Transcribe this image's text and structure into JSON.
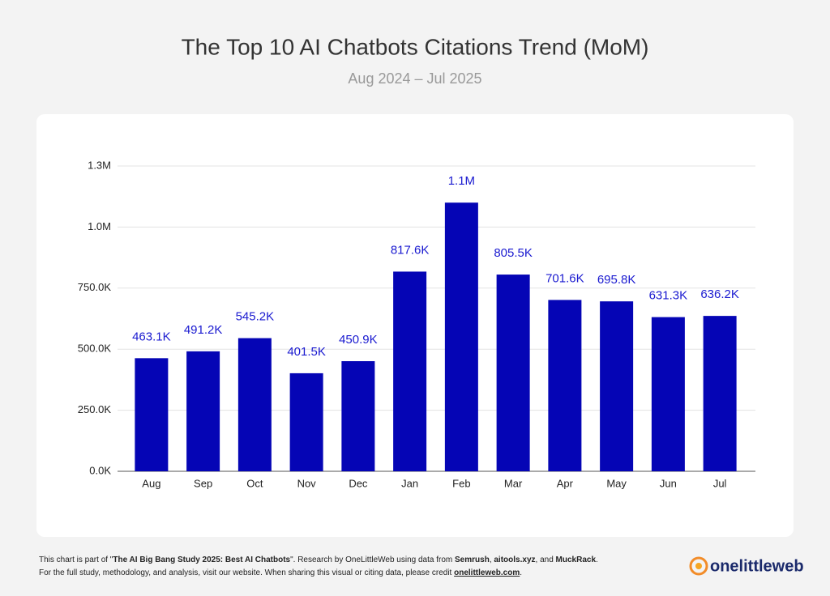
{
  "chart_data": {
    "type": "bar",
    "title": "The Top 10 AI Chatbots Citations Trend (MoM)",
    "subtitle": "Aug 2024 – Jul 2025",
    "categories": [
      "Aug",
      "Sep",
      "Oct",
      "Nov",
      "Dec",
      "Jan",
      "Feb",
      "Mar",
      "Apr",
      "May",
      "Jun",
      "Jul"
    ],
    "values": [
      463100,
      491200,
      545200,
      401500,
      450900,
      817600,
      1100000,
      805500,
      701600,
      695800,
      631300,
      636200
    ],
    "value_labels": [
      "463.1K",
      "491.2K",
      "545.2K",
      "401.5K",
      "450.9K",
      "817.6K",
      "1.1M",
      "805.5K",
      "701.6K",
      "695.8K",
      "631.3K",
      "636.2K"
    ],
    "color": "#0505b5",
    "label_color": "#1a1ad0",
    "ylim": [
      0,
      1250000
    ],
    "yticks": [
      {
        "value": 0,
        "label": "0.0K"
      },
      {
        "value": 250000,
        "label": "250.0K"
      },
      {
        "value": 500000,
        "label": "500.0K"
      },
      {
        "value": 750000,
        "label": "750.0K"
      },
      {
        "value": 1000000,
        "label": "1.0M"
      },
      {
        "value": 1250000,
        "label": "1.3M"
      }
    ],
    "grid": true
  },
  "footer": {
    "line1": [
      "This chart is part of \"",
      "The AI Big Bang Study 2025: Best AI Chatbots",
      "\". Research by OneLittleWeb using data from ",
      "Semrush",
      ", ",
      "aitools.xyz",
      ", and ",
      "MuckRack",
      "."
    ],
    "line2": [
      "For the full study, methodology, and analysis, visit our website. When sharing this visual or citing data, please credit ",
      "onelittleweb.com",
      "."
    ],
    "logo": "onelittleweb"
  }
}
